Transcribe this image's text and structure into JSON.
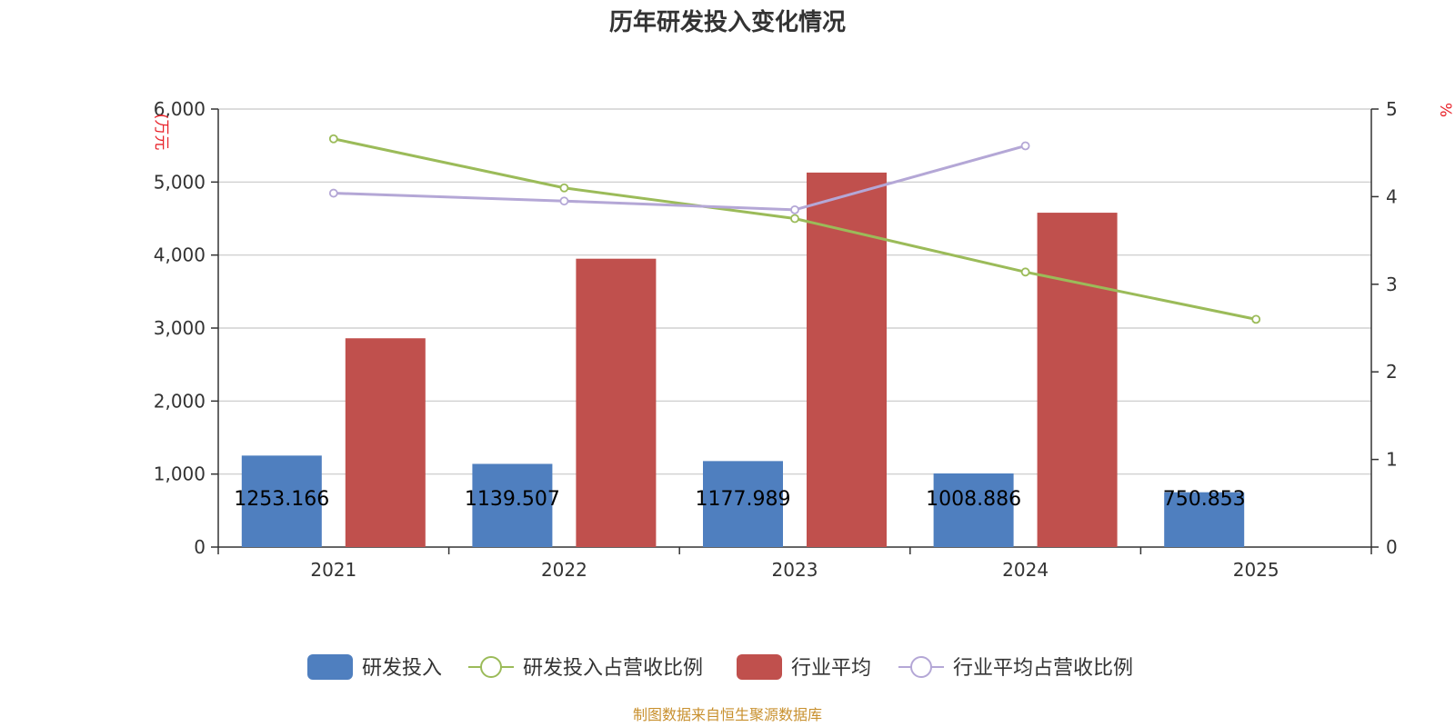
{
  "chart_data": {
    "type": "bar",
    "title": "历年研发投入变化情况",
    "categories": [
      "2021",
      "2022",
      "2023",
      "2024",
      "2025"
    ],
    "left_axis": {
      "unit_label": "(万元",
      "ylim": [
        0,
        6000
      ],
      "ticks": [
        "0",
        "1,000",
        "2,000",
        "3,000",
        "4,000",
        "5,000",
        "6,000"
      ]
    },
    "right_axis": {
      "unit_label": "%",
      "ylim": [
        0,
        5
      ],
      "ticks": [
        "0",
        "1",
        "2",
        "3",
        "4",
        "5"
      ]
    },
    "grid": true,
    "legend_position": "bottom",
    "series": [
      {
        "name": "研发投入",
        "type": "bar",
        "axis": "left",
        "color": "#4f7fbf",
        "values": [
          1253.166,
          1139.507,
          1177.989,
          1008.886,
          750.853
        ],
        "labels": [
          "1253.166",
          "1139.507",
          "1177.989",
          "1008.886",
          "750.853"
        ]
      },
      {
        "name": "研发投入占营收比例",
        "type": "line",
        "axis": "right",
        "color": "#9bbb59",
        "values": [
          4.66,
          4.1,
          3.75,
          3.14,
          2.6
        ]
      },
      {
        "name": "行业平均",
        "type": "bar",
        "axis": "left",
        "color": "#c0504d",
        "values": [
          2860,
          3950,
          5130,
          4580,
          null
        ]
      },
      {
        "name": "行业平均占营收比例",
        "type": "line",
        "axis": "right",
        "color": "#b4a7d6",
        "values": [
          4.04,
          3.95,
          3.85,
          4.58,
          null
        ]
      }
    ]
  },
  "source_text": "制图数据来自恒生聚源数据库"
}
